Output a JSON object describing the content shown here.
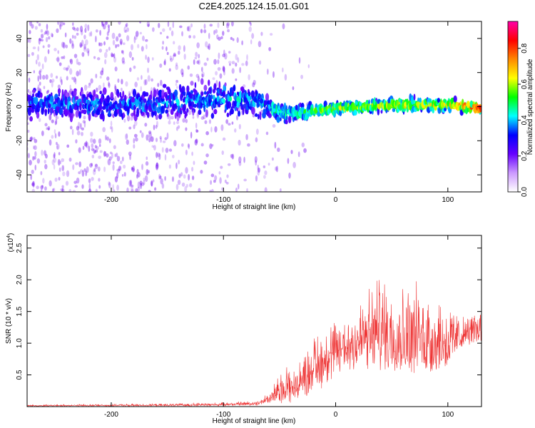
{
  "figure_title": "C2E4.2025.124.15.01.G01",
  "colors": {
    "background": "#ffffff",
    "snr_line": "#ee3333",
    "axis": "#000000",
    "scatter_base": "#6a00f0"
  },
  "chart_data": [
    {
      "type": "heatmap",
      "title": "C2E4.2025.124.15.01.G01",
      "xlabel": "Height of straight line (km)",
      "ylabel": "Frequency (Hz)",
      "xlim": [
        -275,
        130
      ],
      "ylim": [
        -50,
        50
      ],
      "xticks": [
        -200,
        -100,
        0,
        100
      ],
      "yticks": [
        -40,
        -20,
        0,
        20,
        40
      ],
      "colorbar": {
        "label": "Normalized spectral amplitude",
        "range": [
          0.0,
          0.95
        ],
        "ticks": [
          0.0,
          0.2,
          0.4,
          0.6,
          0.8
        ],
        "tick_labels": [
          "0.0",
          "0.2",
          "0.4",
          "0.6",
          "0.8"
        ],
        "colormap": [
          "#ffffff",
          "#cc99ff",
          "#6600ff",
          "#0000ff",
          "#00ffff",
          "#00ff00",
          "#ffff00",
          "#ff8800",
          "#ff0000",
          "#ff00aa"
        ]
      },
      "band_profile": [
        {
          "x": -275,
          "center": 2,
          "halfwidth": 9,
          "amp": 0.35,
          "scatter": 0.85
        },
        {
          "x": -200,
          "center": 1,
          "halfwidth": 10,
          "amp": 0.35,
          "scatter": 0.85
        },
        {
          "x": -150,
          "center": 2,
          "halfwidth": 11,
          "amp": 0.35,
          "scatter": 0.7
        },
        {
          "x": -100,
          "center": 5,
          "halfwidth": 12,
          "amp": 0.4,
          "scatter": 0.55
        },
        {
          "x": -75,
          "center": 3,
          "halfwidth": 9,
          "amp": 0.4,
          "scatter": 0.35
        },
        {
          "x": -50,
          "center": -3,
          "halfwidth": 7,
          "amp": 0.45,
          "scatter": 0.15
        },
        {
          "x": -40,
          "center": -4,
          "halfwidth": 5,
          "amp": 0.5,
          "scatter": 0.08
        },
        {
          "x": 0,
          "center": -1,
          "halfwidth": 4,
          "amp": 0.6,
          "scatter": 0.02
        },
        {
          "x": 50,
          "center": 1,
          "halfwidth": 4,
          "amp": 0.6,
          "scatter": 0.02
        },
        {
          "x": 100,
          "center": 1,
          "halfwidth": 4,
          "amp": 0.65,
          "scatter": 0.02
        },
        {
          "x": 130,
          "center": -1,
          "halfwidth": 3,
          "amp": 0.85,
          "scatter": 0.02
        }
      ]
    },
    {
      "type": "line",
      "xlabel": "Height of straight line (km)",
      "ylabel": "SNR (10 * v/v)",
      "scale_note": "(x10",
      "scale_exp": "4",
      "xlim": [
        -275,
        130
      ],
      "ylim": [
        0,
        2.7
      ],
      "xticks": [
        -200,
        -100,
        0,
        100
      ],
      "yticks": [
        0.5,
        1.0,
        1.5,
        2.0,
        2.5
      ],
      "ytick_labels": [
        "0.5",
        "1.0",
        "1.5",
        "2.0",
        "2.5"
      ],
      "envelope": [
        {
          "x": -275,
          "low": 0.005,
          "high": 0.03
        },
        {
          "x": -150,
          "low": 0.005,
          "high": 0.05
        },
        {
          "x": -100,
          "low": 0.01,
          "high": 0.07
        },
        {
          "x": -70,
          "low": 0.02,
          "high": 0.1
        },
        {
          "x": -60,
          "low": 0.03,
          "high": 0.25
        },
        {
          "x": -50,
          "low": 0.05,
          "high": 0.55
        },
        {
          "x": -40,
          "low": 0.03,
          "high": 0.9
        },
        {
          "x": -38,
          "low": 0.05,
          "high": 0.55
        },
        {
          "x": -30,
          "low": 0.1,
          "high": 0.9
        },
        {
          "x": -20,
          "low": 0.2,
          "high": 1.2
        },
        {
          "x": -10,
          "low": 0.3,
          "high": 1.4
        },
        {
          "x": 0,
          "low": 0.45,
          "high": 1.5
        },
        {
          "x": 20,
          "low": 0.55,
          "high": 1.8
        },
        {
          "x": 40,
          "low": 0.5,
          "high": 2.25
        },
        {
          "x": 60,
          "low": 0.5,
          "high": 2.05
        },
        {
          "x": 80,
          "low": 0.4,
          "high": 2.1
        },
        {
          "x": 100,
          "low": 0.55,
          "high": 1.75
        },
        {
          "x": 115,
          "low": 0.95,
          "high": 1.45
        },
        {
          "x": 130,
          "low": 1.0,
          "high": 1.6
        }
      ]
    }
  ]
}
